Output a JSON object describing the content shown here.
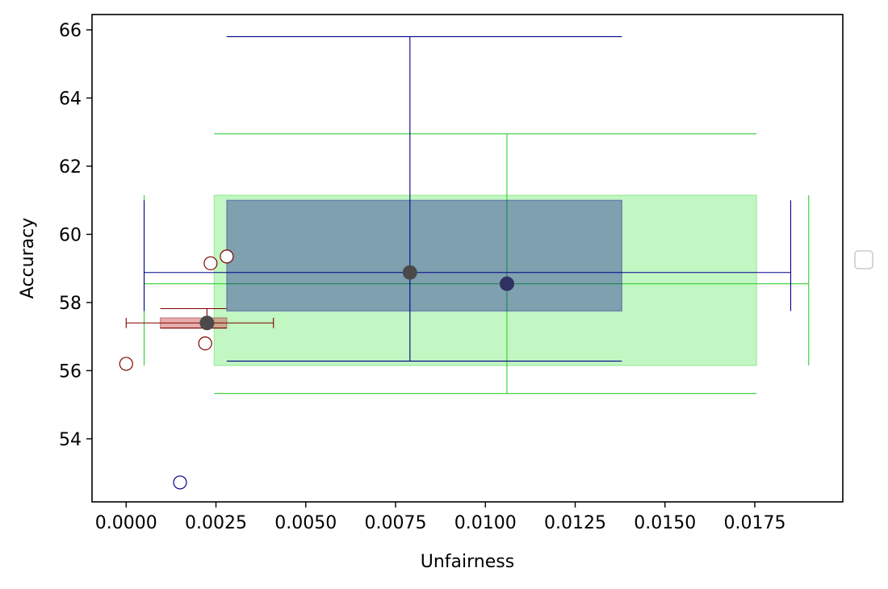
{
  "chart_data": {
    "type": "scatter",
    "title": "",
    "xlabel": "Unfairness",
    "ylabel": "Accuracy",
    "xlim": [
      -0.00095,
      0.01995
    ],
    "ylim": [
      52.15,
      66.45
    ],
    "x_ticks": [
      0.0,
      0.0025,
      0.005,
      0.0075,
      0.01,
      0.0125,
      0.015,
      0.0175
    ],
    "x_tick_labels": [
      "0.0000",
      "0.0025",
      "0.0050",
      "0.0075",
      "0.0100",
      "0.0125",
      "0.0150",
      "0.0175"
    ],
    "y_ticks": [
      54,
      56,
      58,
      60,
      62,
      64,
      66
    ],
    "y_tick_labels": [
      "54",
      "56",
      "58",
      "60",
      "62",
      "64",
      "66"
    ],
    "grid": false,
    "legend": {
      "placement": "outside-right",
      "entries": []
    },
    "colors": {
      "blue": "#00008b",
      "green": "#32cd32",
      "green_fill": "#90ee90",
      "red": "#800000",
      "red_fill": "#cd5c5c",
      "mean_marker": "#4a4a4a"
    },
    "groups": [
      {
        "color_key": "green",
        "fill_key": "green_fill",
        "mean": [
          0.0106,
          58.55
        ],
        "x_box": [
          0.00245,
          0.01755
        ],
        "y_box": [
          56.15,
          61.15
        ],
        "x_whisker": [
          0.0005,
          0.019
        ],
        "y_whisker": [
          55.33,
          62.95
        ],
        "fill_opacity": 0.55,
        "outliers": []
      },
      {
        "color_key": "blue",
        "fill_key": "blue",
        "mean": [
          0.0079,
          58.88
        ],
        "x_box": [
          0.0028,
          0.0138
        ],
        "y_box": [
          57.75,
          61.0
        ],
        "x_whisker": [
          0.0005,
          0.0185
        ],
        "y_whisker": [
          56.28,
          65.8
        ],
        "fill_opacity": 0.35,
        "outliers": [
          [
            0.0015,
            52.72
          ]
        ]
      },
      {
        "color_key": "red",
        "fill_key": "red_fill",
        "mean": [
          0.00225,
          57.4
        ],
        "x_box": [
          0.00095,
          0.0028
        ],
        "y_box": [
          57.25,
          57.55
        ],
        "x_whisker": [
          0.0,
          0.0041
        ],
        "y_whisker": [
          57.25,
          57.82
        ],
        "fill_opacity": 0.5,
        "outliers": [
          [
            0.0,
            56.2
          ],
          [
            0.0022,
            56.8
          ],
          [
            0.00235,
            59.15
          ],
          [
            0.0028,
            59.35
          ]
        ]
      }
    ]
  }
}
